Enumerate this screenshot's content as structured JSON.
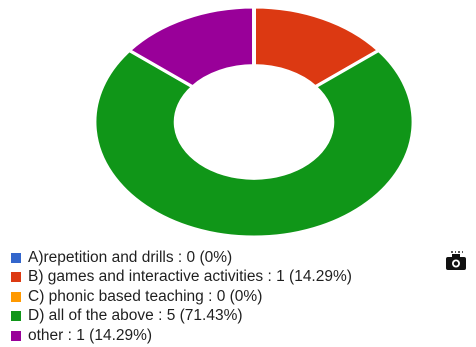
{
  "chart_data": {
    "type": "pie",
    "donut": true,
    "slices": [
      {
        "label": "A)repetition and drills",
        "value": 0,
        "percent": "0%",
        "color": "#3366cc"
      },
      {
        "label": "B) games and interactive activities",
        "value": 1,
        "percent": "14.29%",
        "color": "#dc3912"
      },
      {
        "label": "C) phonic based teaching",
        "value": 0,
        "percent": "0%",
        "color": "#ff9900"
      },
      {
        "label": "D) all of the above",
        "value": 5,
        "percent": "71.43%",
        "color": "#109618"
      },
      {
        "label": "other",
        "value": 1,
        "percent": "14.29%",
        "color": "#990099"
      }
    ],
    "legend_position": "bottom"
  },
  "legend": {
    "items": [
      {
        "text": "A)repetition and drills : 0 (0%)",
        "color": "#3366cc"
      },
      {
        "text": "B) games and interactive activities : 1 (14.29%)",
        "color": "#dc3912"
      },
      {
        "text": "C) phonic based teaching : 0 (0%)",
        "color": "#ff9900"
      },
      {
        "text": "D) all of the above : 5 (71.43%)",
        "color": "#109618"
      },
      {
        "text": "other : 1 (14.29%)",
        "color": "#990099"
      }
    ]
  },
  "icons": {
    "camera": "camera-icon"
  }
}
